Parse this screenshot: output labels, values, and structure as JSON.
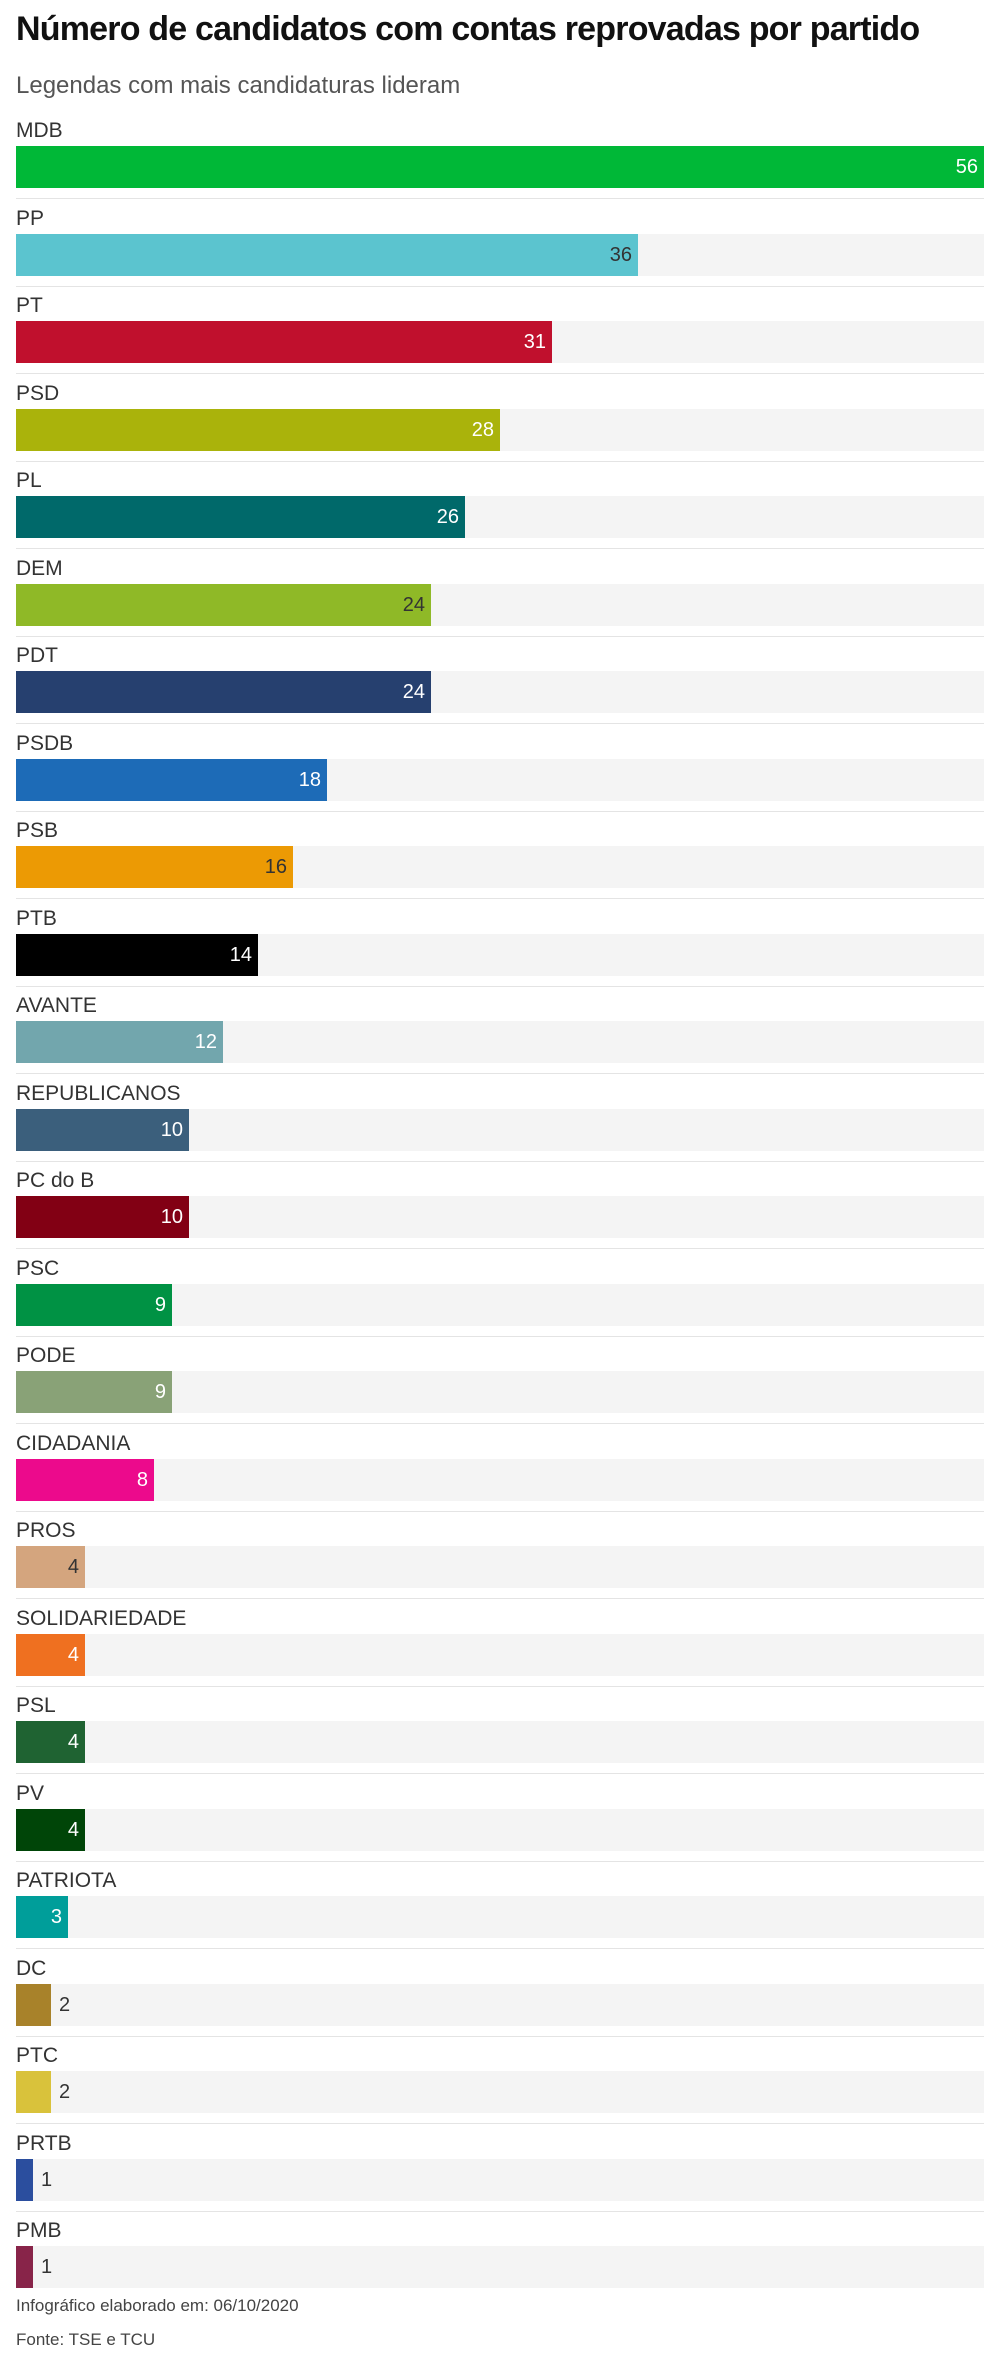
{
  "chart_data": {
    "type": "bar",
    "orientation": "horizontal",
    "title": "Número de candidatos com contas reprovadas por partido",
    "subtitle": "Legendas com mais candidaturas lideram",
    "xlim": [
      0,
      56
    ],
    "grid": false,
    "legend": "none",
    "categories": [
      "MDB",
      "PP",
      "PT",
      "PSD",
      "PL",
      "DEM",
      "PDT",
      "PSDB",
      "PSB",
      "PTB",
      "AVANTE",
      "REPUBLICANOS",
      "PC do B",
      "PSC",
      "PODE",
      "CIDADANIA",
      "PROS",
      "SOLIDARIEDADE",
      "PSL",
      "PV",
      "PATRIOTA",
      "DC",
      "PTC",
      "PRTB",
      "PMB"
    ],
    "values": [
      56,
      36,
      31,
      28,
      26,
      24,
      24,
      18,
      16,
      14,
      12,
      10,
      10,
      9,
      9,
      8,
      4,
      4,
      4,
      4,
      3,
      2,
      2,
      1,
      1
    ],
    "colors": [
      "#00b837",
      "#5bc4cf",
      "#c0102d",
      "#aab30b",
      "#00696a",
      "#8fb927",
      "#26406f",
      "#1d6bb7",
      "#ec9a04",
      "#000000",
      "#72a6ad",
      "#3b5f7c",
      "#820014",
      "#009244",
      "#89a277",
      "#ec0a8c",
      "#d4a57e",
      "#ef7020",
      "#1f6332",
      "#004508",
      "#009e9a",
      "#a8822a",
      "#d9c23b",
      "#2b4e9e",
      "#882449"
    ],
    "label_colors": [
      "#ffffff",
      "#333333",
      "#ffffff",
      "#ffffff",
      "#ffffff",
      "#333333",
      "#ffffff",
      "#ffffff",
      "#333333",
      "#ffffff",
      "#ffffff",
      "#ffffff",
      "#ffffff",
      "#ffffff",
      "#ffffff",
      "#ffffff",
      "#333333",
      "#ffffff",
      "#ffffff",
      "#ffffff",
      "#ffffff",
      "#ffffff",
      "#333333",
      "#333333",
      "#333333"
    ]
  },
  "footer": {
    "note": "Infográfico elaborado em: 06/10/2020",
    "source": "Fonte: TSE e TCU"
  }
}
